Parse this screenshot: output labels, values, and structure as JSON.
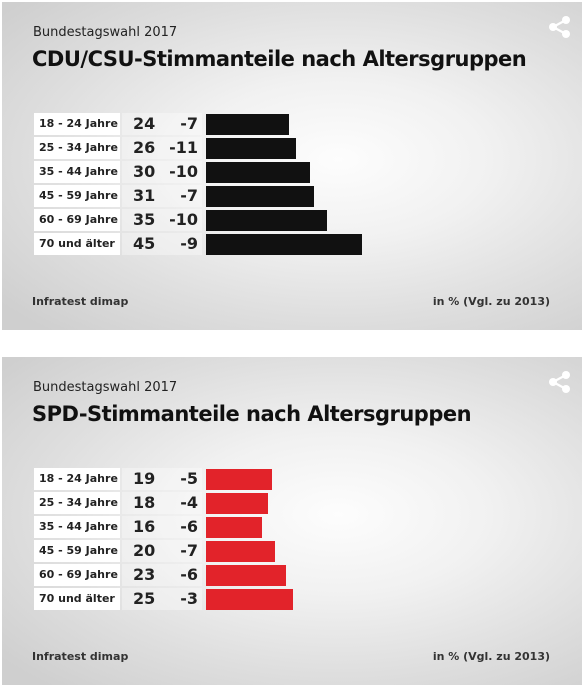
{
  "chart_data": [
    {
      "type": "bar",
      "kicker": "Bundestagswahl 2017",
      "title": "CDU/CSU-Stimmanteile nach Altersgruppen",
      "categories": [
        "18 - 24 Jahre",
        "25 - 34 Jahre",
        "35 - 44 Jahre",
        "45 - 59 Jahre",
        "60 - 69 Jahre",
        "70 und älter"
      ],
      "values": [
        24,
        26,
        30,
        31,
        35,
        45
      ],
      "changes": [
        "-7",
        "-11",
        "-10",
        "-7",
        "-10",
        "-9"
      ],
      "color": "#111111",
      "source": "Infratest dimap",
      "unit_note": "in % (Vgl. zu 2013)"
    },
    {
      "type": "bar",
      "kicker": "Bundestagswahl 2017",
      "title": "SPD-Stimmanteile nach Altersgruppen",
      "categories": [
        "18 - 24 Jahre",
        "25 - 34 Jahre",
        "35 - 44 Jahre",
        "45 - 59 Jahre",
        "60 - 69 Jahre",
        "70 und älter"
      ],
      "values": [
        19,
        18,
        16,
        20,
        23,
        25
      ],
      "changes": [
        "-5",
        "-4",
        "-6",
        "-7",
        "-6",
        "-3"
      ],
      "color": "#e2232a",
      "source": "Infratest dimap",
      "unit_note": "in % (Vgl. zu 2013)"
    }
  ],
  "share_icon": "share-icon"
}
